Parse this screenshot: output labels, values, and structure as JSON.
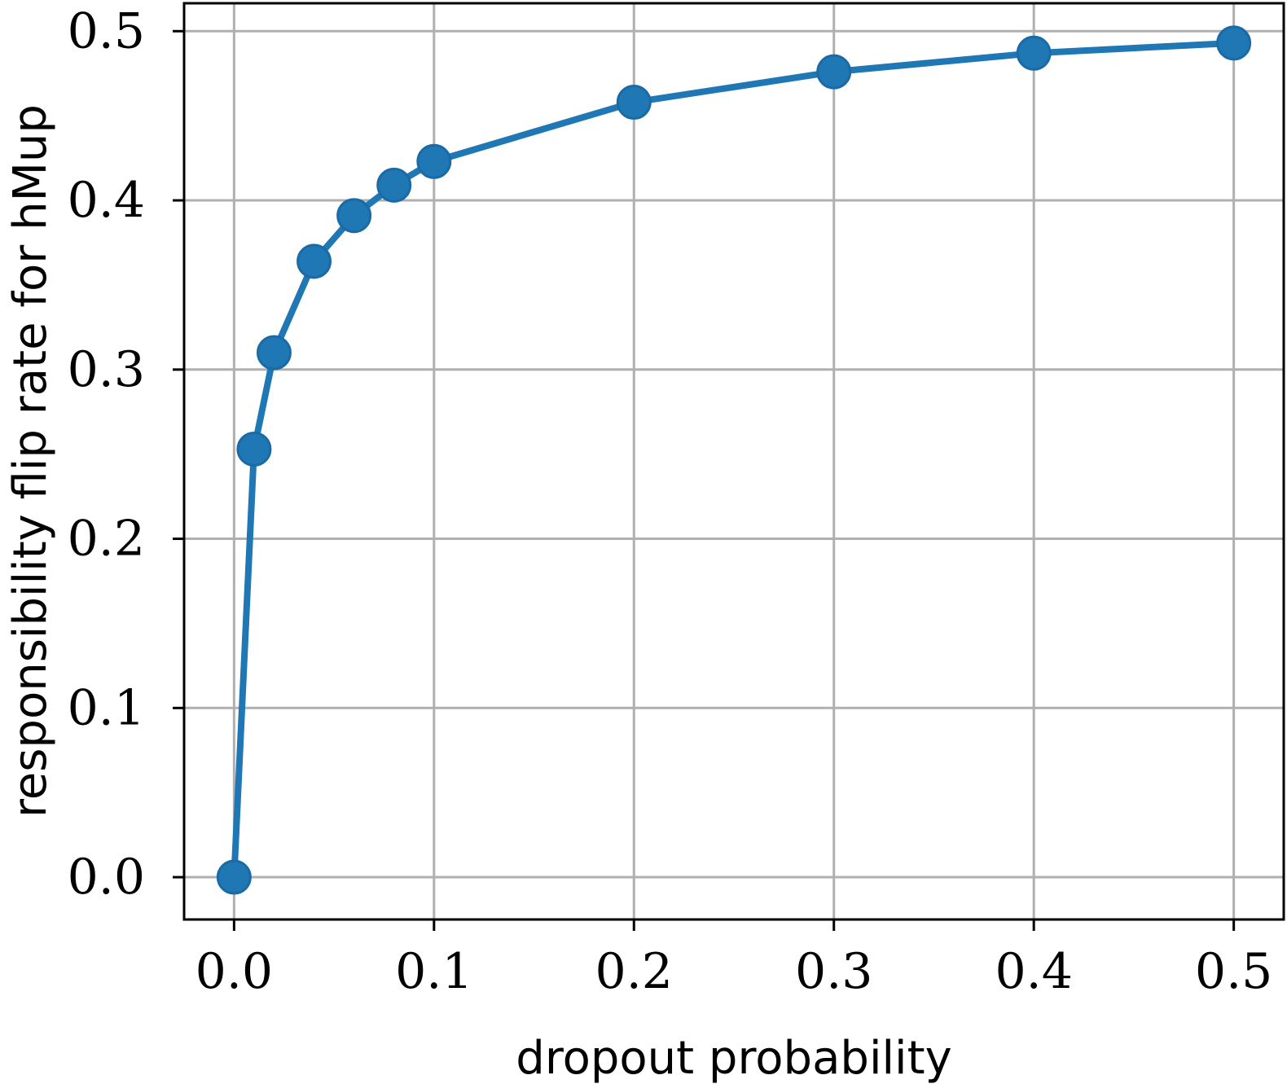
{
  "chart_data": {
    "type": "line",
    "title": "",
    "xlabel": "dropout probability",
    "ylabel": "responsibility flip rate for hMup",
    "xlim": [
      -0.025,
      0.525
    ],
    "ylim": [
      -0.025,
      0.5165
    ],
    "xticks": [
      0.0,
      0.1,
      0.2,
      0.3,
      0.4,
      0.5
    ],
    "yticks": [
      0.0,
      0.1,
      0.2,
      0.3,
      0.4,
      0.5
    ],
    "xtick_labels": [
      "0.0",
      "0.1",
      "0.2",
      "0.3",
      "0.4",
      "0.5"
    ],
    "ytick_labels": [
      "0.0",
      "0.1",
      "0.2",
      "0.3",
      "0.4",
      "0.5"
    ],
    "grid": true,
    "series": [
      {
        "color": "#1f77b4",
        "marker": "circle",
        "x": [
          0.0,
          0.01,
          0.02,
          0.04,
          0.06,
          0.08,
          0.1,
          0.2,
          0.3,
          0.4,
          0.5
        ],
        "y": [
          0.0,
          0.253,
          0.31,
          0.364,
          0.391,
          0.409,
          0.423,
          0.458,
          0.476,
          0.487,
          0.493
        ]
      }
    ]
  }
}
